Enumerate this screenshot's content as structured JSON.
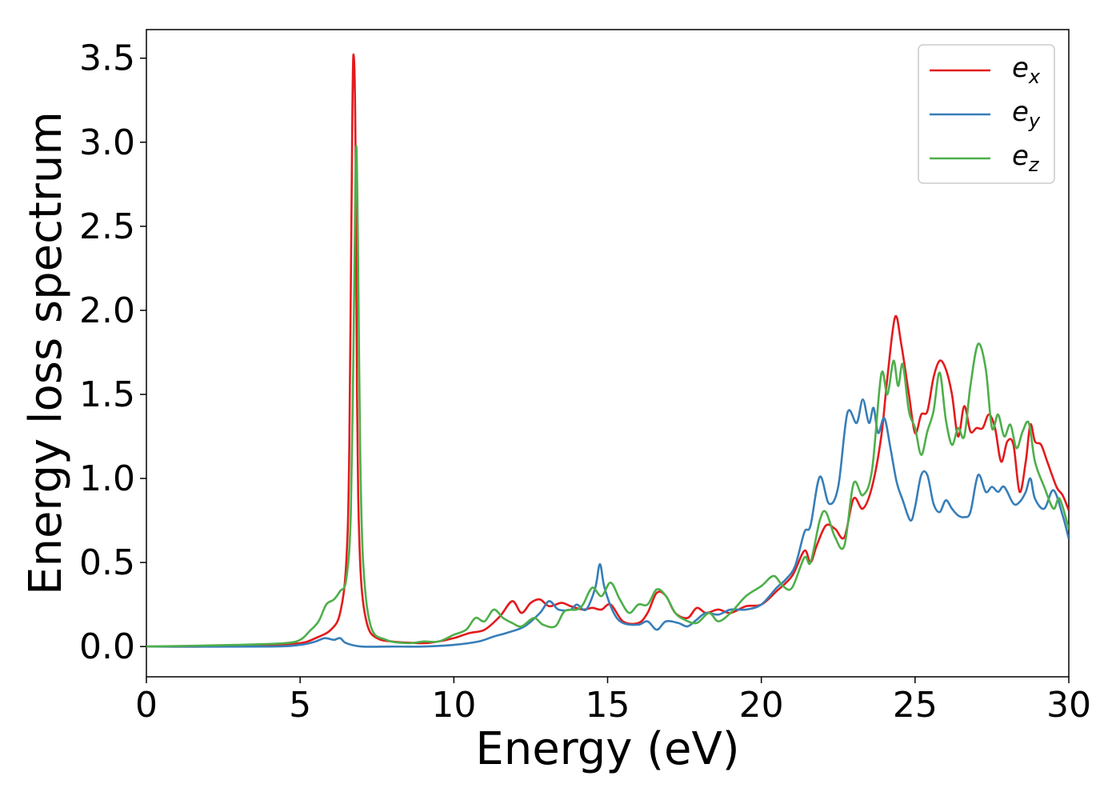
{
  "chart_data": {
    "type": "line",
    "xlabel": "Energy (eV)",
    "ylabel": "Energy loss spectrum",
    "xlim": [
      0,
      30
    ],
    "ylim": [
      -0.18,
      3.67
    ],
    "xticks": [
      0,
      5,
      10,
      15,
      20,
      25,
      30
    ],
    "yticks": [
      0.0,
      0.5,
      1.0,
      1.5,
      2.0,
      2.5,
      3.0,
      3.5
    ],
    "xtick_labels": [
      "0",
      "5",
      "10",
      "15",
      "20",
      "25",
      "30"
    ],
    "ytick_labels": [
      "0.0",
      "0.5",
      "1.0",
      "1.5",
      "2.0",
      "2.5",
      "3.0",
      "3.5"
    ],
    "grid": false,
    "legend_position": "top-right",
    "series": [
      {
        "name": "e",
        "subscript": "x",
        "color": "#e41a1c",
        "points": [
          [
            0,
            0.0
          ],
          [
            2,
            0.0
          ],
          [
            4,
            0.01
          ],
          [
            5,
            0.02
          ],
          [
            5.5,
            0.05
          ],
          [
            6,
            0.1
          ],
          [
            6.3,
            0.2
          ],
          [
            6.5,
            0.5
          ],
          [
            6.6,
            1.2
          ],
          [
            6.7,
            3.2
          ],
          [
            6.75,
            3.5
          ],
          [
            6.8,
            3.0
          ],
          [
            6.85,
            1.5
          ],
          [
            6.9,
            0.8
          ],
          [
            7.0,
            0.35
          ],
          [
            7.2,
            0.12
          ],
          [
            7.5,
            0.05
          ],
          [
            8,
            0.03
          ],
          [
            9,
            0.02
          ],
          [
            9.5,
            0.03
          ],
          [
            10,
            0.05
          ],
          [
            10.5,
            0.08
          ],
          [
            11,
            0.1
          ],
          [
            11.5,
            0.18
          ],
          [
            11.9,
            0.27
          ],
          [
            12.2,
            0.2
          ],
          [
            12.5,
            0.26
          ],
          [
            12.8,
            0.28
          ],
          [
            13.1,
            0.24
          ],
          [
            13.5,
            0.26
          ],
          [
            13.8,
            0.24
          ],
          [
            14.2,
            0.22
          ],
          [
            14.5,
            0.23
          ],
          [
            14.8,
            0.22
          ],
          [
            15.1,
            0.25
          ],
          [
            15.5,
            0.15
          ],
          [
            16,
            0.14
          ],
          [
            16.3,
            0.2
          ],
          [
            16.6,
            0.32
          ],
          [
            16.9,
            0.3
          ],
          [
            17.2,
            0.2
          ],
          [
            17.6,
            0.17
          ],
          [
            17.9,
            0.23
          ],
          [
            18.2,
            0.2
          ],
          [
            18.6,
            0.22
          ],
          [
            19,
            0.2
          ],
          [
            19.5,
            0.24
          ],
          [
            20,
            0.25
          ],
          [
            20.5,
            0.33
          ],
          [
            21,
            0.42
          ],
          [
            21.4,
            0.57
          ],
          [
            21.6,
            0.5
          ],
          [
            21.8,
            0.6
          ],
          [
            22.1,
            0.72
          ],
          [
            22.4,
            0.7
          ],
          [
            22.7,
            0.65
          ],
          [
            23,
            0.88
          ],
          [
            23.3,
            0.82
          ],
          [
            23.6,
            0.95
          ],
          [
            23.9,
            1.25
          ],
          [
            24.1,
            1.6
          ],
          [
            24.35,
            1.96
          ],
          [
            24.55,
            1.8
          ],
          [
            24.8,
            1.5
          ],
          [
            25,
            1.27
          ],
          [
            25.2,
            1.38
          ],
          [
            25.4,
            1.4
          ],
          [
            25.6,
            1.6
          ],
          [
            25.8,
            1.7
          ],
          [
            26.0,
            1.65
          ],
          [
            26.2,
            1.5
          ],
          [
            26.4,
            1.25
          ],
          [
            26.6,
            1.43
          ],
          [
            26.8,
            1.28
          ],
          [
            27.0,
            1.3
          ],
          [
            27.2,
            1.3
          ],
          [
            27.4,
            1.38
          ],
          [
            27.6,
            1.3
          ],
          [
            27.8,
            1.1
          ],
          [
            28.0,
            1.22
          ],
          [
            28.2,
            1.2
          ],
          [
            28.4,
            0.92
          ],
          [
            28.6,
            1.1
          ],
          [
            28.75,
            1.32
          ],
          [
            28.9,
            1.22
          ],
          [
            29.1,
            1.2
          ],
          [
            29.3,
            1.1
          ],
          [
            29.6,
            0.95
          ],
          [
            29.8,
            0.9
          ],
          [
            30,
            0.81
          ]
        ]
      },
      {
        "name": "e",
        "subscript": "y",
        "color": "#377eb8",
        "points": [
          [
            0,
            0.0
          ],
          [
            4,
            0.0
          ],
          [
            5,
            0.01
          ],
          [
            5.5,
            0.03
          ],
          [
            5.8,
            0.05
          ],
          [
            6.1,
            0.04
          ],
          [
            6.3,
            0.05
          ],
          [
            6.5,
            0.02
          ],
          [
            7,
            0.0
          ],
          [
            8,
            0.0
          ],
          [
            9,
            0.0
          ],
          [
            10,
            0.01
          ],
          [
            10.8,
            0.03
          ],
          [
            11.3,
            0.06
          ],
          [
            11.7,
            0.08
          ],
          [
            12.3,
            0.12
          ],
          [
            12.8,
            0.2
          ],
          [
            13.1,
            0.27
          ],
          [
            13.4,
            0.22
          ],
          [
            13.8,
            0.22
          ],
          [
            14.0,
            0.25
          ],
          [
            14.3,
            0.22
          ],
          [
            14.6,
            0.35
          ],
          [
            14.75,
            0.49
          ],
          [
            14.9,
            0.35
          ],
          [
            15.2,
            0.2
          ],
          [
            15.5,
            0.14
          ],
          [
            16.0,
            0.13
          ],
          [
            16.3,
            0.15
          ],
          [
            16.6,
            0.1
          ],
          [
            16.9,
            0.15
          ],
          [
            17.3,
            0.14
          ],
          [
            17.6,
            0.12
          ],
          [
            17.9,
            0.16
          ],
          [
            18.2,
            0.2
          ],
          [
            18.6,
            0.19
          ],
          [
            19,
            0.22
          ],
          [
            19.5,
            0.22
          ],
          [
            20,
            0.25
          ],
          [
            20.5,
            0.35
          ],
          [
            20.8,
            0.4
          ],
          [
            21.1,
            0.48
          ],
          [
            21.4,
            0.68
          ],
          [
            21.6,
            0.72
          ],
          [
            21.9,
            1.01
          ],
          [
            22.2,
            0.85
          ],
          [
            22.5,
            0.95
          ],
          [
            22.8,
            1.39
          ],
          [
            23.1,
            1.33
          ],
          [
            23.3,
            1.47
          ],
          [
            23.5,
            1.33
          ],
          [
            23.65,
            1.42
          ],
          [
            23.8,
            1.27
          ],
          [
            24.0,
            1.36
          ],
          [
            24.2,
            1.18
          ],
          [
            24.4,
            0.98
          ],
          [
            24.6,
            0.87
          ],
          [
            24.85,
            0.75
          ],
          [
            25.0,
            0.83
          ],
          [
            25.2,
            1.02
          ],
          [
            25.4,
            1.02
          ],
          [
            25.6,
            0.85
          ],
          [
            25.8,
            0.8
          ],
          [
            26.0,
            0.87
          ],
          [
            26.2,
            0.82
          ],
          [
            26.4,
            0.78
          ],
          [
            26.6,
            0.77
          ],
          [
            26.8,
            0.8
          ],
          [
            27.05,
            1.02
          ],
          [
            27.3,
            0.92
          ],
          [
            27.5,
            0.95
          ],
          [
            27.7,
            0.92
          ],
          [
            27.9,
            0.95
          ],
          [
            28.2,
            0.85
          ],
          [
            28.4,
            0.86
          ],
          [
            28.6,
            0.92
          ],
          [
            28.75,
            1.0
          ],
          [
            28.9,
            0.88
          ],
          [
            29.2,
            0.82
          ],
          [
            29.5,
            0.93
          ],
          [
            29.8,
            0.78
          ],
          [
            30,
            0.64
          ]
        ]
      },
      {
        "name": "e",
        "subscript": "z",
        "color": "#4daf4a",
        "points": [
          [
            0,
            0.0
          ],
          [
            3,
            0.01
          ],
          [
            4.5,
            0.02
          ],
          [
            5,
            0.04
          ],
          [
            5.3,
            0.09
          ],
          [
            5.6,
            0.15
          ],
          [
            5.85,
            0.25
          ],
          [
            6.1,
            0.28
          ],
          [
            6.3,
            0.33
          ],
          [
            6.5,
            0.4
          ],
          [
            6.65,
            0.8
          ],
          [
            6.75,
            2.0
          ],
          [
            6.82,
            2.97
          ],
          [
            6.88,
            2.4
          ],
          [
            6.95,
            1.2
          ],
          [
            7.05,
            0.5
          ],
          [
            7.3,
            0.12
          ],
          [
            7.8,
            0.04
          ],
          [
            8.5,
            0.02
          ],
          [
            9,
            0.03
          ],
          [
            9.5,
            0.03
          ],
          [
            10,
            0.07
          ],
          [
            10.4,
            0.1
          ],
          [
            10.7,
            0.17
          ],
          [
            11.0,
            0.15
          ],
          [
            11.3,
            0.22
          ],
          [
            11.6,
            0.17
          ],
          [
            11.9,
            0.14
          ],
          [
            12.2,
            0.12
          ],
          [
            12.6,
            0.17
          ],
          [
            12.9,
            0.13
          ],
          [
            13.3,
            0.12
          ],
          [
            13.6,
            0.21
          ],
          [
            14.0,
            0.22
          ],
          [
            14.2,
            0.25
          ],
          [
            14.5,
            0.35
          ],
          [
            14.8,
            0.3
          ],
          [
            15.1,
            0.38
          ],
          [
            15.4,
            0.28
          ],
          [
            15.7,
            0.2
          ],
          [
            16.0,
            0.25
          ],
          [
            16.3,
            0.25
          ],
          [
            16.6,
            0.34
          ],
          [
            16.9,
            0.3
          ],
          [
            17.2,
            0.2
          ],
          [
            17.5,
            0.16
          ],
          [
            17.9,
            0.14
          ],
          [
            18.3,
            0.2
          ],
          [
            18.6,
            0.15
          ],
          [
            19,
            0.2
          ],
          [
            19.5,
            0.3
          ],
          [
            20,
            0.36
          ],
          [
            20.4,
            0.42
          ],
          [
            20.7,
            0.36
          ],
          [
            21.0,
            0.35
          ],
          [
            21.4,
            0.53
          ],
          [
            21.6,
            0.5
          ],
          [
            21.9,
            0.75
          ],
          [
            22.1,
            0.8
          ],
          [
            22.4,
            0.65
          ],
          [
            22.7,
            0.6
          ],
          [
            23.0,
            0.97
          ],
          [
            23.3,
            0.9
          ],
          [
            23.6,
            1.05
          ],
          [
            23.9,
            1.62
          ],
          [
            24.1,
            1.5
          ],
          [
            24.3,
            1.7
          ],
          [
            24.45,
            1.55
          ],
          [
            24.6,
            1.68
          ],
          [
            24.8,
            1.4
          ],
          [
            25.0,
            1.3
          ],
          [
            25.2,
            1.14
          ],
          [
            25.4,
            1.28
          ],
          [
            25.6,
            1.4
          ],
          [
            25.8,
            1.63
          ],
          [
            26.0,
            1.35
          ],
          [
            26.2,
            1.2
          ],
          [
            26.4,
            1.3
          ],
          [
            26.6,
            1.25
          ],
          [
            26.8,
            1.55
          ],
          [
            27.05,
            1.8
          ],
          [
            27.3,
            1.65
          ],
          [
            27.5,
            1.3
          ],
          [
            27.7,
            1.38
          ],
          [
            27.9,
            1.25
          ],
          [
            28.1,
            1.32
          ],
          [
            28.3,
            1.18
          ],
          [
            28.5,
            1.28
          ],
          [
            28.7,
            1.33
          ],
          [
            28.9,
            1.1
          ],
          [
            29.2,
            0.95
          ],
          [
            29.5,
            0.82
          ],
          [
            29.7,
            0.88
          ],
          [
            30,
            0.7
          ]
        ]
      }
    ]
  }
}
